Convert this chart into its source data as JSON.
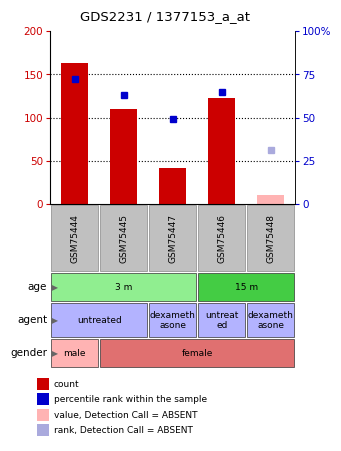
{
  "title": "GDS2231 / 1377153_a_at",
  "samples": [
    "GSM75444",
    "GSM75445",
    "GSM75447",
    "GSM75446",
    "GSM75448"
  ],
  "bar_values": [
    163,
    110,
    42,
    122,
    10
  ],
  "bar_colors": [
    "#cc0000",
    "#cc0000",
    "#cc0000",
    "#cc0000",
    "#ffb3b3"
  ],
  "dot_values": [
    72,
    63,
    49,
    65,
    31
  ],
  "dot_absent": [
    false,
    false,
    false,
    false,
    true
  ],
  "ylim": [
    0,
    200
  ],
  "y2lim": [
    0,
    100
  ],
  "yticks": [
    0,
    50,
    100,
    150,
    200
  ],
  "y2ticks": [
    0,
    25,
    50,
    75,
    100
  ],
  "y2ticklabels": [
    "0",
    "25",
    "50",
    "75",
    "100%"
  ],
  "age_groups": [
    {
      "label": "3 m",
      "cols": [
        0,
        1,
        2
      ],
      "color": "#90ee90"
    },
    {
      "label": "15 m",
      "cols": [
        3,
        4
      ],
      "color": "#44cc44"
    }
  ],
  "agent_groups": [
    {
      "label": "untreated",
      "cols": [
        0,
        1
      ],
      "color": "#b3b3ff"
    },
    {
      "label": "dexameth\nasone",
      "cols": [
        2
      ],
      "color": "#b3b3ff"
    },
    {
      "label": "untreat\ned",
      "cols": [
        3
      ],
      "color": "#b3b3ff"
    },
    {
      "label": "dexameth\nasone",
      "cols": [
        4
      ],
      "color": "#b3b3ff"
    }
  ],
  "gender_groups": [
    {
      "label": "male",
      "cols": [
        0
      ],
      "color": "#ffb3b3"
    },
    {
      "label": "female",
      "cols": [
        1,
        2,
        3,
        4
      ],
      "color": "#e07070"
    }
  ],
  "row_labels": [
    "age",
    "agent",
    "gender"
  ],
  "legend_items": [
    {
      "color": "#cc0000",
      "label": "count"
    },
    {
      "color": "#0000cc",
      "label": "percentile rank within the sample"
    },
    {
      "color": "#ffb3b3",
      "label": "value, Detection Call = ABSENT"
    },
    {
      "color": "#aaaadd",
      "label": "rank, Detection Call = ABSENT"
    }
  ],
  "sample_bg_color": "#c0c0c0",
  "title_color": "#000000",
  "left_color": "#cc0000",
  "right_color": "#0000cc"
}
